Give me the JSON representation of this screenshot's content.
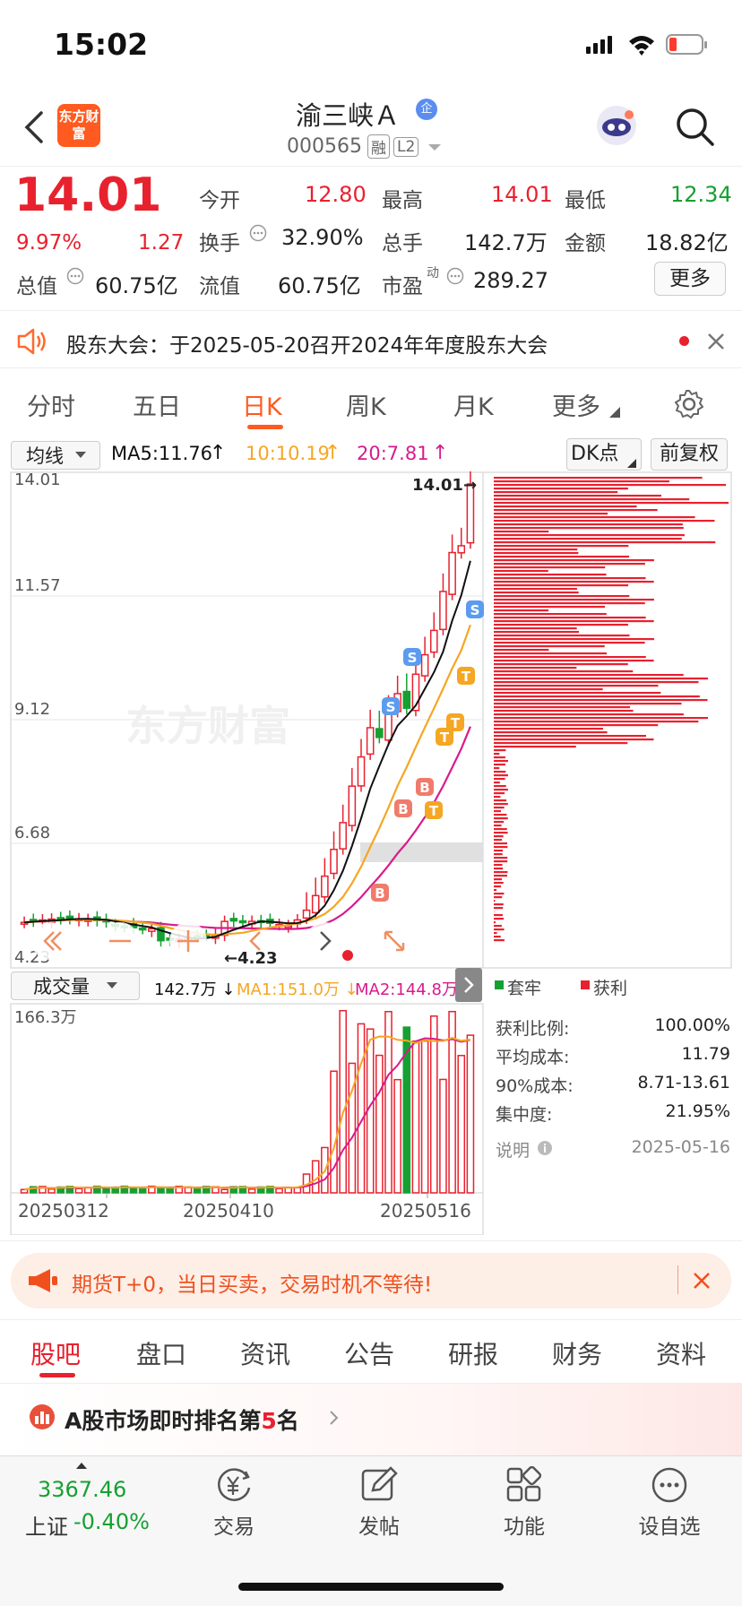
{
  "status": {
    "time": "15:02"
  },
  "header": {
    "name": "渝三峡Ａ",
    "badge": "企",
    "code": "000565",
    "tag1": "融",
    "tag2": "L2",
    "logo": "东方财富"
  },
  "quote": {
    "price": "14.01",
    "pct": "9.97%",
    "chg": "1.27",
    "row1": [
      {
        "label": "今开",
        "value": "12.80",
        "color": "#e8212e"
      },
      {
        "label": "最高",
        "value": "14.01",
        "color": "#e8212e"
      },
      {
        "label": "最低",
        "value": "12.34",
        "color": "#16a032"
      }
    ],
    "row2": [
      {
        "label": "换手",
        "value": "32.90%"
      },
      {
        "label": "总手",
        "value": "142.7万"
      },
      {
        "label": "金额",
        "value": "18.82亿"
      }
    ],
    "row3": [
      {
        "label": "总值",
        "value": "60.75亿"
      },
      {
        "label": "流值",
        "value": "60.75亿"
      },
      {
        "label": "市盈",
        "sup": "动",
        "value": "289.27"
      }
    ],
    "more": "更多"
  },
  "notice": {
    "text": "股东大会：于2025-05-20召开2024年年度股东大会"
  },
  "tabs": [
    "分时",
    "五日",
    "日K",
    "周K",
    "月K",
    "更多"
  ],
  "active_tab": "日K",
  "ma": {
    "select": "均线",
    "ma5": "MA5:11.76",
    "ma10": "10:10.19",
    "ma20": "20:7.81",
    "dk": "DK点",
    "fq": "前复权"
  },
  "kline": {
    "ylabels": [
      "14.01",
      "11.57",
      "9.12",
      "6.68",
      "4.23"
    ],
    "high_mark": "14.01",
    "low_mark": "4.23",
    "watermark": "东方财富"
  },
  "vol": {
    "select": "成交量",
    "cur": "142.7万",
    "ma1": "MA1:151.0万",
    "ma2": "MA2:144.8万",
    "max": "166.3万",
    "dates": [
      "20250312",
      "20250410",
      "20250516"
    ]
  },
  "chips": {
    "legend1": "套牢",
    "legend2": "获利",
    "rows": [
      {
        "label": "获利比例:",
        "value": "100.00%"
      },
      {
        "label": "平均成本:",
        "value": "11.79"
      },
      {
        "label": "90%成本:",
        "value": "8.71-13.61"
      },
      {
        "label": "集中度:",
        "value": "21.95%"
      },
      {
        "label": "说明",
        "value": "2025-05-16"
      }
    ]
  },
  "ad": {
    "text": "期货T+0，当日买卖，交易时机不等待!"
  },
  "bottom_tabs": [
    "股吧",
    "盘口",
    "资讯",
    "公告",
    "研报",
    "财务",
    "资料"
  ],
  "rank": {
    "pre": "A股市场即时排名第",
    "num": "5",
    "post": "名"
  },
  "nav": {
    "index_value": "3367.46",
    "index_name": "上证",
    "index_chg": "-0.40%",
    "items": [
      "交易",
      "发帖",
      "功能",
      "设自选"
    ]
  },
  "colors": {
    "up": "#e8212e",
    "down": "#16a032",
    "ma5": "#111111",
    "ma10": "#f5a623",
    "ma20": "#d81b8c"
  }
}
